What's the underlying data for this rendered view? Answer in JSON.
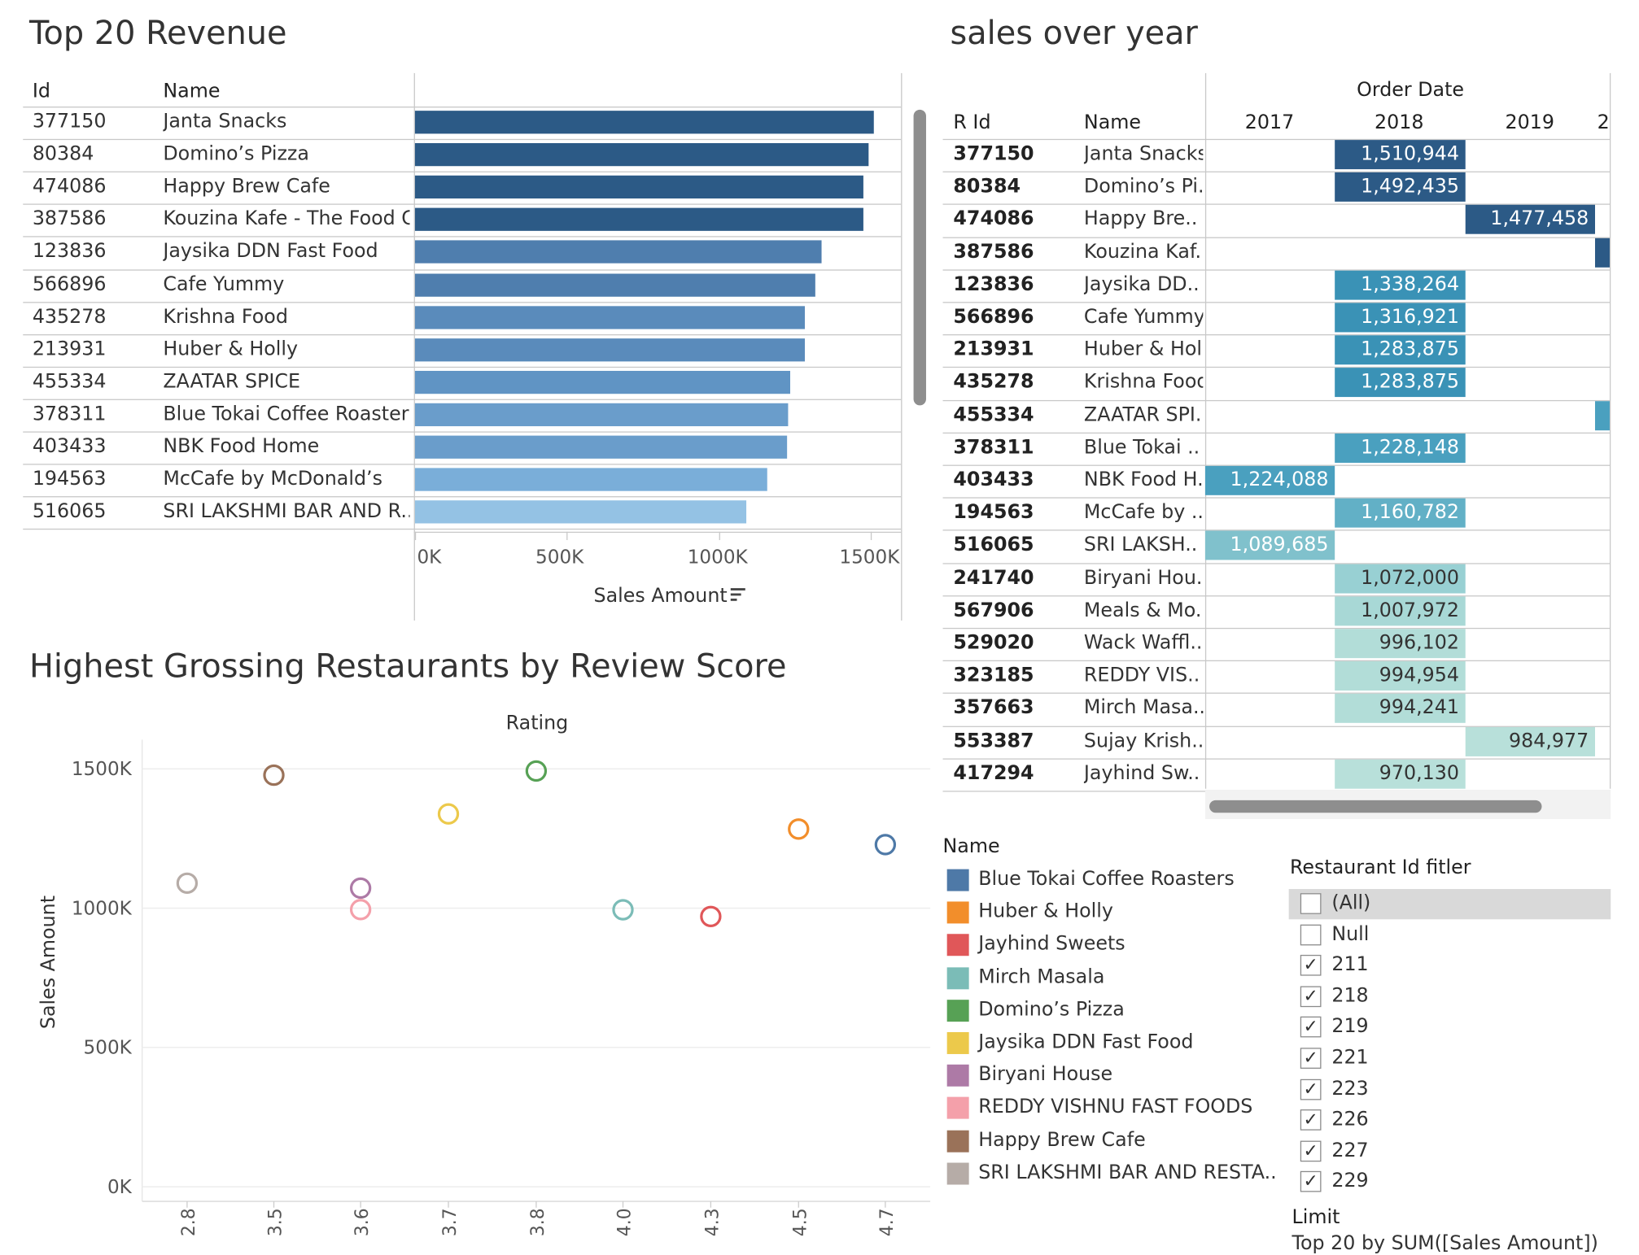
{
  "top20": {
    "title": "Top 20 Revenue",
    "col_id": "Id",
    "col_name": "Name",
    "axis_label": "Sales Amount",
    "axis_ticks": [
      "0K",
      "500K",
      "1000K",
      "1500K"
    ],
    "rows": [
      {
        "id": "377150",
        "name": "Janta Snacks",
        "value": 1510944,
        "color": "#2c5a86"
      },
      {
        "id": "80384",
        "name": "Domino’s Pizza",
        "value": 1492435,
        "color": "#2c5a86"
      },
      {
        "id": "474086",
        "name": "Happy Brew Cafe",
        "value": 1477458,
        "color": "#2c5a86"
      },
      {
        "id": "387586",
        "name": "Kouzina Kafe - The Food C..",
        "value": 1477000,
        "color": "#2c5a86"
      },
      {
        "id": "123836",
        "name": "Jaysika DDN Fast Food",
        "value": 1338264,
        "color": "#4f7eae"
      },
      {
        "id": "566896",
        "name": "Cafe Yummy",
        "value": 1316921,
        "color": "#4f7eae"
      },
      {
        "id": "435278",
        "name": "Krishna Food",
        "value": 1283875,
        "color": "#5a8bbb"
      },
      {
        "id": "213931",
        "name": "Huber & Holly",
        "value": 1283875,
        "color": "#5a8bbb"
      },
      {
        "id": "455334",
        "name": "ZAATAR SPICE",
        "value": 1235000,
        "color": "#6094c4"
      },
      {
        "id": "378311",
        "name": "Blue Tokai Coffee Roasters",
        "value": 1228148,
        "color": "#6a9dcb"
      },
      {
        "id": "403433",
        "name": "NBK Food Home",
        "value": 1224088,
        "color": "#6a9dcb"
      },
      {
        "id": "194563",
        "name": "McCafe by McDonald’s",
        "value": 1160782,
        "color": "#7aaed9"
      },
      {
        "id": "516065",
        "name": "SRI LAKSHMI  BAR AND R..",
        "value": 1089685,
        "color": "#94c2e4"
      }
    ]
  },
  "sales_over_year": {
    "title": "sales over year",
    "order_date": "Order Date",
    "col_rid": "R Id",
    "col_name": "Name",
    "years": [
      "2017",
      "2018",
      "2019",
      "2"
    ],
    "rows": [
      {
        "id": "377150",
        "name": "Janta Snacks",
        "year": "2018",
        "value": "1,510,944",
        "color": "#2c5a86"
      },
      {
        "id": "80384",
        "name": "Domino’s Pi..",
        "year": "2018",
        "value": "1,492,435",
        "color": "#2c5a86"
      },
      {
        "id": "474086",
        "name": "Happy Bre..",
        "year": "2019",
        "value": "1,477,458",
        "color": "#2c5a86"
      },
      {
        "id": "387586",
        "name": "Kouzina Kaf..",
        "year": "2",
        "value": "",
        "color": "#2c5a86"
      },
      {
        "id": "123836",
        "name": "Jaysika DD..",
        "year": "2018",
        "value": "1,338,264",
        "color": "#3a92b6"
      },
      {
        "id": "566896",
        "name": "Cafe Yummy",
        "year": "2018",
        "value": "1,316,921",
        "color": "#3a92b6"
      },
      {
        "id": "213931",
        "name": "Huber & Hol..",
        "year": "2018",
        "value": "1,283,875",
        "color": "#3a92b6"
      },
      {
        "id": "435278",
        "name": "Krishna Food",
        "year": "2018",
        "value": "1,283,875",
        "color": "#3a92b6"
      },
      {
        "id": "455334",
        "name": "ZAATAR SPI..",
        "year": "2",
        "value": "",
        "color": "#4aa0bf"
      },
      {
        "id": "378311",
        "name": "Blue Tokai ..",
        "year": "2018",
        "value": "1,228,148",
        "color": "#4aa0bf"
      },
      {
        "id": "403433",
        "name": "NBK Food H..",
        "year": "2017",
        "value": "1,224,088",
        "color": "#4aa0bf"
      },
      {
        "id": "194563",
        "name": "McCafe by ..",
        "year": "2018",
        "value": "1,160,782",
        "color": "#62b0c6"
      },
      {
        "id": "516065",
        "name": "SRI LAKSH..",
        "year": "2017",
        "value": "1,089,685",
        "color": "#80c1cc"
      },
      {
        "id": "241740",
        "name": "Biryani Hou..",
        "year": "2018",
        "value": "1,072,000",
        "color": "#98d0d3"
      },
      {
        "id": "567906",
        "name": "Meals & Mo..",
        "year": "2018",
        "value": "1,007,972",
        "color": "#a8d8d6"
      },
      {
        "id": "529020",
        "name": "Wack Waffl..",
        "year": "2018",
        "value": "996,102",
        "color": "#b2ddd8"
      },
      {
        "id": "323185",
        "name": "REDDY VIS..",
        "year": "2018",
        "value": "994,954",
        "color": "#b2ddd8"
      },
      {
        "id": "357663",
        "name": "Mirch Masa..",
        "year": "2018",
        "value": "994,241",
        "color": "#b2ddd8"
      },
      {
        "id": "553387",
        "name": "Sujay Krish..",
        "year": "2019",
        "value": "984,977",
        "color": "#b8e0da"
      },
      {
        "id": "417294",
        "name": "Jayhind Sw..",
        "year": "2018",
        "value": "970,130",
        "color": "#b8e0da"
      }
    ]
  },
  "scatter": {
    "title": "Highest Grossing Restaurants by Review Score",
    "top_label": "Rating",
    "ylabel": "Sales Amount"
  },
  "chart_data": {
    "type": "scatter",
    "title": "Highest Grossing Restaurants by Review Score",
    "xlabel": "Rating",
    "ylabel": "Sales Amount",
    "x_categories": [
      "2.8",
      "3.5",
      "3.6",
      "3.7",
      "3.8",
      "4.0",
      "4.3",
      "4.5",
      "4.7"
    ],
    "y_ticks": [
      "0K",
      "500K",
      "1000K",
      "1500K"
    ],
    "ylim": [
      0,
      1500000
    ],
    "points": [
      {
        "x": "2.8",
        "y": 1089685,
        "name": "SRI LAKSHMI  BAR AND RESTA..",
        "color": "#b6aca7"
      },
      {
        "x": "3.5",
        "y": 1477458,
        "name": "Happy Brew Cafe",
        "color": "#9a7259"
      },
      {
        "x": "3.6",
        "y": 1072000,
        "name": "Biryani House",
        "color": "#ad7aa6"
      },
      {
        "x": "3.6",
        "y": 994954,
        "name": "REDDY VISHNU FAST FOODS",
        "color": "#f4a0aa"
      },
      {
        "x": "3.7",
        "y": 1338264,
        "name": "Jaysika DDN Fast Food",
        "color": "#ecc94b"
      },
      {
        "x": "3.8",
        "y": 1492435,
        "name": "Domino’s Pizza",
        "color": "#57a155"
      },
      {
        "x": "4.0",
        "y": 994241,
        "name": "Mirch Masala",
        "color": "#7bbcb7"
      },
      {
        "x": "4.3",
        "y": 970130,
        "name": "Jayhind Sweets",
        "color": "#e05759"
      },
      {
        "x": "4.5",
        "y": 1283875,
        "name": "Huber & Holly",
        "color": "#f28e2b"
      },
      {
        "x": "4.7",
        "y": 1228148,
        "name": "Blue Tokai Coffee Roasters",
        "color": "#4e79a7"
      }
    ],
    "grid": true
  },
  "legend": {
    "title": "Name",
    "items": [
      {
        "label": "Blue Tokai Coffee Roasters",
        "color": "#4e79a7"
      },
      {
        "label": "Huber & Holly",
        "color": "#f28e2b"
      },
      {
        "label": "Jayhind Sweets",
        "color": "#e05759"
      },
      {
        "label": "Mirch Masala",
        "color": "#7bbcb7"
      },
      {
        "label": "Domino’s Pizza",
        "color": "#57a155"
      },
      {
        "label": "Jaysika DDN Fast Food",
        "color": "#ecc94b"
      },
      {
        "label": "Biryani House",
        "color": "#ad7aa6"
      },
      {
        "label": "REDDY VISHNU FAST FOODS",
        "color": "#f4a0aa"
      },
      {
        "label": "Happy Brew Cafe",
        "color": "#9a7259"
      },
      {
        "label": "SRI LAKSHMI  BAR AND RESTA..",
        "color": "#b6aca7"
      }
    ]
  },
  "filter": {
    "title": "Restaurant Id fitler",
    "items": [
      {
        "label": "(All)",
        "checked": false,
        "highlight": true
      },
      {
        "label": "Null",
        "checked": false
      },
      {
        "label": "211",
        "checked": true
      },
      {
        "label": "218",
        "checked": true
      },
      {
        "label": "219",
        "checked": true
      },
      {
        "label": "221",
        "checked": true
      },
      {
        "label": "223",
        "checked": true
      },
      {
        "label": "226",
        "checked": true
      },
      {
        "label": "227",
        "checked": true
      },
      {
        "label": "229",
        "checked": true
      }
    ],
    "limit_title": "Limit",
    "limit_text": "Top 20 by SUM([Sales Amount])"
  }
}
